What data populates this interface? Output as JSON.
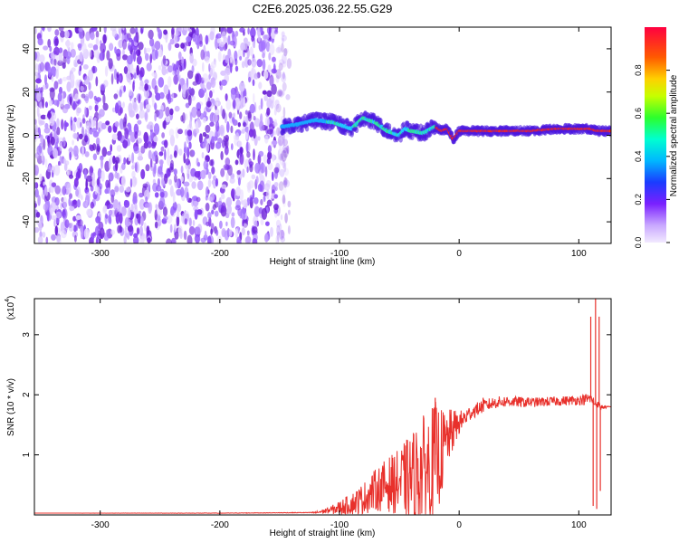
{
  "title": "C2E6.2025.036.22.55.G29",
  "chart_data": [
    {
      "type": "heatmap",
      "xlabel": "Height of straight line (km)",
      "ylabel": "Frequency (Hz)",
      "xlim": [
        -355,
        127
      ],
      "ylim": [
        -50,
        50
      ],
      "xticks": [
        -300,
        -200,
        -100,
        0,
        100
      ],
      "yticks": [
        -40,
        -20,
        0,
        20,
        40
      ],
      "noise_region_x": [
        -355,
        -148
      ],
      "frequency_track": {
        "x": [
          -148,
          -135,
          -120,
          -105,
          -90,
          -80,
          -70,
          -60,
          -50,
          -45,
          -40,
          -30,
          -20,
          -15,
          -10,
          -5,
          0,
          20,
          40,
          60,
          80,
          100,
          110,
          115,
          120,
          127
        ],
        "y": [
          4,
          5,
          7,
          6,
          3,
          8,
          6,
          2,
          0,
          3,
          2,
          1,
          4,
          2,
          3,
          -2,
          2,
          2,
          2,
          2,
          3,
          3,
          3,
          2,
          2,
          2
        ]
      },
      "colorbar": {
        "label": "Normalized spectral amplitude",
        "ticks": [
          "0.0",
          "0.2",
          "0.4",
          "0.6",
          "0.8"
        ],
        "range": [
          0,
          1
        ]
      }
    },
    {
      "type": "line",
      "xlabel": "Height of straight line (km)",
      "ylabel": "SNR (10 * v/v)",
      "multiplier": "(x10",
      "multiplier_exp": "4",
      "xlim": [
        -355,
        127
      ],
      "ylim": [
        0,
        3.6
      ],
      "xticks": [
        -300,
        -200,
        -100,
        0,
        100
      ],
      "yticks": [
        1,
        2,
        3
      ],
      "color": "#e8302b",
      "envelope": {
        "x": [
          -355,
          -200,
          -120,
          -105,
          -90,
          -80,
          -70,
          -60,
          -50,
          -40,
          -30,
          -25,
          -20,
          -15,
          -10,
          -5,
          0,
          10,
          20,
          30,
          40,
          60,
          80,
          100,
          105,
          110,
          112,
          114,
          116,
          118,
          120,
          127
        ],
        "y": [
          0.03,
          0.03,
          0.04,
          0.1,
          0.2,
          0.3,
          0.45,
          0.55,
          0.6,
          0.7,
          0.85,
          0.9,
          1.0,
          1.1,
          1.3,
          1.45,
          1.55,
          1.72,
          1.82,
          1.88,
          1.9,
          1.88,
          1.9,
          1.92,
          1.93,
          1.95,
          1.9,
          1.85,
          1.85,
          1.8,
          1.8,
          1.8
        ]
      },
      "noise_amplitude": {
        "x": [
          -355,
          -125,
          -110,
          -90,
          -70,
          -50,
          -40,
          -30,
          -20,
          -10,
          0,
          10,
          30,
          60,
          100,
          108,
          127
        ],
        "y": [
          0.0,
          0.005,
          0.05,
          0.18,
          0.35,
          0.55,
          0.75,
          0.9,
          1.0,
          0.5,
          0.2,
          0.12,
          0.1,
          0.08,
          0.08,
          0.1,
          0.0
        ]
      },
      "spikes": [
        {
          "x": -20,
          "y": 1.95
        },
        {
          "x": -12,
          "y": 1.5
        },
        {
          "x": -8,
          "y": 1.45
        },
        {
          "x": 20,
          "y": 1.95
        },
        {
          "x": 58,
          "y": 1.95
        },
        {
          "x": 110,
          "y": 3.3
        },
        {
          "x": 112,
          "y": 0.15
        },
        {
          "x": 114,
          "y": 3.6
        },
        {
          "x": 115,
          "y": 0.1
        },
        {
          "x": 117,
          "y": 3.3
        },
        {
          "x": 118,
          "y": 0.4
        }
      ]
    }
  ]
}
